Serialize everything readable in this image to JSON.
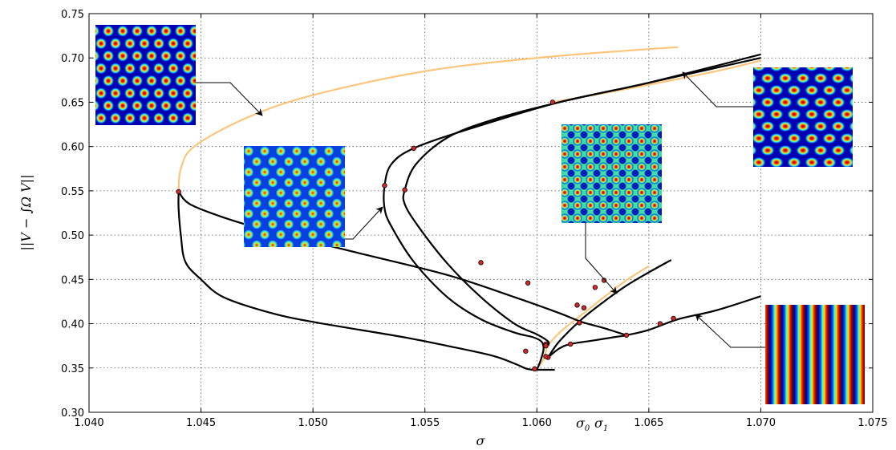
{
  "chart_data": {
    "type": "line",
    "xlabel": "σ",
    "ylabel": "||V − ∫Ω V||",
    "xlim": [
      1.04,
      1.075
    ],
    "ylim": [
      0.3,
      0.75
    ],
    "grid": true,
    "x_ticks": [
      "1.040",
      "1.045",
      "1.050",
      "1.055",
      "1.060",
      "1.065",
      "1.070",
      "1.075"
    ],
    "y_ticks": [
      "0.30",
      "0.35",
      "0.40",
      "0.45",
      "0.50",
      "0.55",
      "0.60",
      "0.65",
      "0.70",
      "0.75"
    ],
    "x_annotations": [
      {
        "label": "σ",
        "sub": "0",
        "x": 1.0599
      },
      {
        "label": "σ",
        "sub": "1",
        "x": 1.0605
      }
    ],
    "colors": {
      "branch": "#000000",
      "unstable_branch": "#fdc57b",
      "marker": "#d62728"
    },
    "series": [
      {
        "style": "orange",
        "points": [
          [
            1.0599,
            0.348
          ],
          [
            1.0601,
            0.352
          ],
          [
            1.0603,
            0.36
          ],
          [
            1.0605,
            0.375
          ],
          [
            1.0611,
            0.392
          ],
          [
            1.062,
            0.41
          ],
          [
            1.063,
            0.43
          ],
          [
            1.064,
            0.449
          ],
          [
            1.065,
            0.465
          ]
        ]
      },
      {
        "style": "orange",
        "points": [
          [
            1.044,
            0.549
          ],
          [
            1.0441,
            0.575
          ],
          [
            1.0447,
            0.6
          ],
          [
            1.047,
            0.632
          ],
          [
            1.05,
            0.658
          ],
          [
            1.055,
            0.685
          ],
          [
            1.06,
            0.7
          ],
          [
            1.065,
            0.71
          ],
          [
            1.0663,
            0.712
          ]
        ]
      },
      {
        "style": "orange",
        "points": [
          [
            1.0607,
            0.65
          ],
          [
            1.064,
            0.665
          ],
          [
            1.068,
            0.685
          ],
          [
            1.07,
            0.697
          ]
        ]
      },
      {
        "style": "black",
        "points": [
          [
            1.0598,
            0.348
          ],
          [
            1.0595,
            0.3495
          ],
          [
            1.059,
            0.355
          ],
          [
            1.058,
            0.364
          ],
          [
            1.056,
            0.375
          ],
          [
            1.054,
            0.385
          ],
          [
            1.05,
            0.402
          ],
          [
            1.048,
            0.413
          ],
          [
            1.046,
            0.43
          ],
          [
            1.045,
            0.45
          ],
          [
            1.0443,
            0.47
          ],
          [
            1.0441,
            0.5
          ],
          [
            1.044,
            0.53
          ],
          [
            1.044,
            0.549
          ]
        ]
      },
      {
        "style": "black",
        "points": [
          [
            1.06,
            0.348
          ],
          [
            1.0601,
            0.354
          ],
          [
            1.0602,
            0.361
          ],
          [
            1.0603,
            0.372
          ],
          [
            1.0602,
            0.38
          ],
          [
            1.0598,
            0.385
          ],
          [
            1.059,
            0.39
          ],
          [
            1.0575,
            0.405
          ],
          [
            1.056,
            0.43
          ],
          [
            1.0545,
            0.47
          ],
          [
            1.0535,
            0.51
          ],
          [
            1.0532,
            0.53
          ],
          [
            1.0532,
            0.556
          ],
          [
            1.0535,
            0.58
          ],
          [
            1.0545,
            0.598
          ],
          [
            1.057,
            0.62
          ],
          [
            1.061,
            0.65
          ],
          [
            1.065,
            0.672
          ],
          [
            1.07,
            0.704
          ]
        ]
      },
      {
        "style": "black",
        "points": [
          [
            1.0605,
            0.375
          ],
          [
            1.0605,
            0.38
          ],
          [
            1.06,
            0.388
          ],
          [
            1.059,
            0.4
          ],
          [
            1.0575,
            0.43
          ],
          [
            1.056,
            0.468
          ],
          [
            1.0547,
            0.51
          ],
          [
            1.0541,
            0.535
          ],
          [
            1.0541,
            0.551
          ],
          [
            1.0546,
            0.58
          ],
          [
            1.056,
            0.61
          ],
          [
            1.058,
            0.63
          ],
          [
            1.061,
            0.65
          ],
          [
            1.065,
            0.672
          ],
          [
            1.07,
            0.7
          ]
        ]
      },
      {
        "style": "black",
        "points": [
          [
            1.0605,
            0.362
          ],
          [
            1.061,
            0.372
          ],
          [
            1.0615,
            0.377
          ],
          [
            1.0625,
            0.381
          ],
          [
            1.0635,
            0.385
          ],
          [
            1.064,
            0.387
          ],
          [
            1.065,
            0.393
          ],
          [
            1.0663,
            0.405
          ],
          [
            1.068,
            0.415
          ],
          [
            1.07,
            0.431
          ]
        ]
      },
      {
        "style": "black",
        "points": [
          [
            1.0605,
            0.362
          ],
          [
            1.061,
            0.38
          ],
          [
            1.062,
            0.405
          ],
          [
            1.063,
            0.425
          ],
          [
            1.064,
            0.443
          ],
          [
            1.065,
            0.458
          ],
          [
            1.066,
            0.472
          ]
        ]
      },
      {
        "style": "black",
        "points": [
          [
            1.064,
            0.387
          ],
          [
            1.063,
            0.395
          ],
          [
            1.062,
            0.402
          ],
          [
            1.061,
            0.412
          ],
          [
            1.059,
            0.43
          ],
          [
            1.056,
            0.455
          ],
          [
            1.052,
            0.48
          ],
          [
            1.048,
            0.505
          ],
          [
            1.046,
            0.52
          ],
          [
            1.0445,
            0.535
          ],
          [
            1.044,
            0.549
          ]
        ]
      },
      {
        "style": "black",
        "points": [
          [
            1.0598,
            0.348
          ],
          [
            1.0608,
            0.348
          ]
        ]
      }
    ],
    "markers": [
      [
        1.044,
        0.549
      ],
      [
        1.0532,
        0.556
      ],
      [
        1.0541,
        0.551
      ],
      [
        1.0545,
        0.598
      ],
      [
        1.0607,
        0.65
      ],
      [
        1.0575,
        0.469
      ],
      [
        1.0596,
        0.446
      ],
      [
        1.0619,
        0.401
      ],
      [
        1.0618,
        0.421
      ],
      [
        1.0621,
        0.418
      ],
      [
        1.0595,
        0.369
      ],
      [
        1.0599,
        0.349
      ],
      [
        1.0604,
        0.377
      ],
      [
        1.0604,
        0.375
      ],
      [
        1.0605,
        0.362
      ],
      [
        1.0604,
        0.363
      ],
      [
        1.0615,
        0.377
      ],
      [
        1.0626,
        0.441
      ],
      [
        1.063,
        0.449
      ],
      [
        1.064,
        0.387
      ],
      [
        1.0655,
        0.4
      ],
      [
        1.0661,
        0.406
      ]
    ],
    "insets": [
      {
        "name": "inset-hexagons-top-left",
        "pattern": "hex-spots"
      },
      {
        "name": "inset-mixed-spots",
        "pattern": "mixed-spots"
      },
      {
        "name": "inset-square-lattice",
        "pattern": "square-lattice"
      },
      {
        "name": "inset-hexagons-right",
        "pattern": "hex-spots-wide"
      },
      {
        "name": "inset-stripes",
        "pattern": "stripes"
      }
    ]
  }
}
